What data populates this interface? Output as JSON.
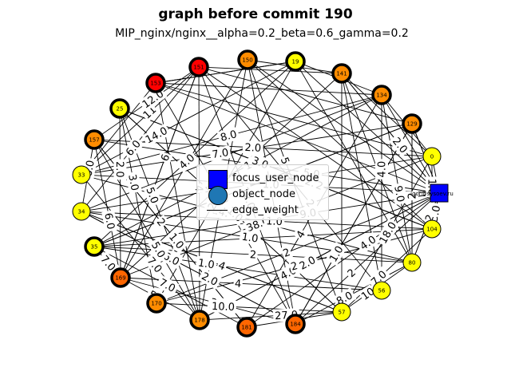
{
  "title": "graph before commit 190",
  "subtitle": "MIP_nginx/nginx__alpha=0.2_beta=0.6_gamma=0.2",
  "legend": {
    "items": [
      {
        "label": "focus_user_node",
        "symbol": "square",
        "color": "#0000ff"
      },
      {
        "label": "object_node",
        "symbol": "circle",
        "color": "#1f77b4"
      },
      {
        "label": "edge_weight",
        "symbol": "line",
        "color": "#000000"
      }
    ]
  },
  "colors": {
    "yellow": "#ffff00",
    "orange": "#ff8c00",
    "darkorange": "#ff6600",
    "red": "#ff0000",
    "blue": "#0000ff"
  },
  "nodes": [
    {
      "id": "0",
      "color": "#ffff00",
      "ring": false
    },
    {
      "id": "igor@sysoev.ru",
      "color": "#0000ff",
      "ring": false,
      "shape": "square"
    },
    {
      "id": "104",
      "color": "#ffff00",
      "ring": false
    },
    {
      "id": "80",
      "color": "#ffff00",
      "ring": false
    },
    {
      "id": "56",
      "color": "#ffff00",
      "ring": false
    },
    {
      "id": "57",
      "color": "#ffff00",
      "ring": false
    },
    {
      "id": "184",
      "color": "#ff6600",
      "ring": true
    },
    {
      "id": "181",
      "color": "#ff6600",
      "ring": true
    },
    {
      "id": "178",
      "color": "#ff8c00",
      "ring": true
    },
    {
      "id": "170",
      "color": "#ff8c00",
      "ring": true
    },
    {
      "id": "169",
      "color": "#ff6600",
      "ring": true
    },
    {
      "id": "35",
      "color": "#ffff00",
      "ring": true
    },
    {
      "id": "34",
      "color": "#ffff00",
      "ring": false
    },
    {
      "id": "33",
      "color": "#ffff00",
      "ring": false
    },
    {
      "id": "157",
      "color": "#ff8c00",
      "ring": true
    },
    {
      "id": "25",
      "color": "#ffff00",
      "ring": true
    },
    {
      "id": "153",
      "color": "#ff0000",
      "ring": true
    },
    {
      "id": "151",
      "color": "#ff0000",
      "ring": true
    },
    {
      "id": "150",
      "color": "#ff8c00",
      "ring": true
    },
    {
      "id": "19",
      "color": "#ffff00",
      "ring": true
    },
    {
      "id": "141",
      "color": "#ff8c00",
      "ring": true
    },
    {
      "id": "134",
      "color": "#ff8c00",
      "ring": true
    },
    {
      "id": "129",
      "color": "#ff8c00",
      "ring": true
    }
  ],
  "edge_labels": [
    "7.0",
    "1.0",
    "18.0",
    "38.0",
    "4.0",
    "2.0",
    "1.0",
    "2",
    "2",
    "2.0",
    "1.0",
    "2",
    "7.0",
    "2",
    "3.0",
    "2",
    "14.0",
    "2",
    "9.0",
    "2",
    "4",
    "4.0",
    "2",
    "4",
    "23.0",
    "5",
    "10",
    "3.0",
    "2",
    "6.0",
    "1.0",
    "8.0",
    "12.0",
    "2",
    "4.0",
    "4",
    "4",
    "5.0",
    "27.0",
    "7.0",
    "2.0",
    "4",
    "5.0",
    "10.0",
    "23.0",
    "2",
    "6",
    "2.0",
    "6.0",
    "7.0",
    "1.0",
    "9.0",
    "1.0",
    "4.0",
    "7.0",
    "2.0",
    "5",
    "6.0",
    "1.0",
    "11",
    "14.0",
    "7.0",
    "8.0",
    "12.0",
    "5.0",
    "6.0",
    "2.0",
    "1.0",
    "5.0",
    "3.0",
    "3.0",
    "1.0"
  ]
}
